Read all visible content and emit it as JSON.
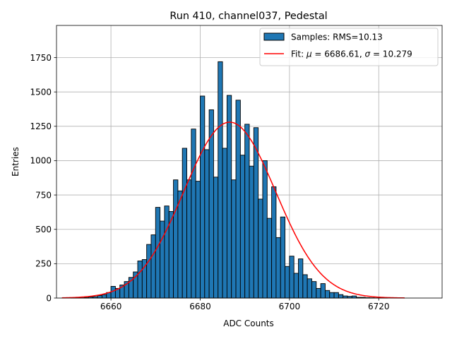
{
  "chart_data": {
    "type": "histogram",
    "title": "Run 410, channel037, Pedestal",
    "xlabel": "ADC Counts",
    "ylabel": "Entries",
    "xlim": [
      6647.8,
      6734.2
    ],
    "ylim": [
      0,
      1984
    ],
    "x_ticks": [
      6660,
      6680,
      6700,
      6720
    ],
    "y_ticks": [
      0,
      250,
      500,
      750,
      1000,
      1250,
      1500,
      1750
    ],
    "grid": true,
    "legend_position": "top-right",
    "colors": {
      "bars": "#1f77b4",
      "bar_edge": "#000000",
      "fit": "#ff0000",
      "grid": "#b0b0b0"
    },
    "bin_edges_start": 6651,
    "bin_width": 1,
    "histogram": {
      "name": "Samples: RMS=10.13",
      "bin_counts": [
        1,
        1,
        2,
        4,
        8,
        10,
        18,
        25,
        40,
        85,
        70,
        95,
        120,
        150,
        190,
        270,
        280,
        390,
        460,
        660,
        560,
        670,
        630,
        860,
        780,
        1090,
        860,
        1230,
        850,
        1470,
        1080,
        1370,
        880,
        1720,
        1090,
        1475,
        860,
        1440,
        1040,
        1265,
        960,
        1240,
        720,
        1000,
        580,
        810,
        440,
        590,
        230,
        305,
        180,
        285,
        170,
        140,
        120,
        70,
        105,
        55,
        40,
        40,
        25,
        15,
        12,
        15,
        5,
        5,
        3,
        2,
        1,
        1,
        1
      ]
    },
    "fit": {
      "name": "Fit: μ = 6686.61, σ = 10.279",
      "legend_prefix": "Fit: ",
      "mu_symbol": "μ",
      "mu_text": " = 6686.61, ",
      "sigma_symbol": "σ",
      "sigma_text": " = 10.279",
      "mu": 6686.61,
      "sigma": 10.279,
      "amplitude": 1280,
      "x_range": [
        6649,
        6725.8
      ]
    }
  }
}
